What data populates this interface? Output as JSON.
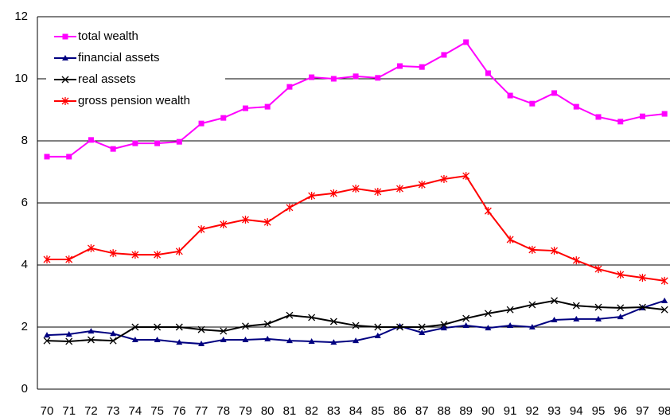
{
  "chart_data": {
    "type": "line",
    "categories": [
      "70",
      "71",
      "72",
      "73",
      "74",
      "75",
      "76",
      "77",
      "78",
      "79",
      "80",
      "81",
      "82",
      "83",
      "84",
      "85",
      "86",
      "87",
      "88",
      "89",
      "90",
      "91",
      "92",
      "93",
      "94",
      "95",
      "96",
      "97",
      "98"
    ],
    "series": [
      {
        "name": "total wealth",
        "color": "#ff00ff",
        "marker": "square",
        "values": [
          7.49,
          7.49,
          8.03,
          7.74,
          7.92,
          7.92,
          7.97,
          8.56,
          8.74,
          9.05,
          9.1,
          9.74,
          10.05,
          10.0,
          10.08,
          10.03,
          10.41,
          10.38,
          10.77,
          11.18,
          10.18,
          9.46,
          9.2,
          9.54,
          9.1,
          8.77,
          8.62,
          8.79,
          8.87
        ]
      },
      {
        "name": "financial assets",
        "color": "#000080",
        "marker": "triangle",
        "values": [
          1.74,
          1.77,
          1.87,
          1.79,
          1.59,
          1.59,
          1.51,
          1.46,
          1.59,
          1.59,
          1.62,
          1.56,
          1.54,
          1.51,
          1.56,
          1.72,
          2.03,
          1.82,
          1.97,
          2.05,
          1.97,
          2.05,
          2.0,
          2.23,
          2.26,
          2.26,
          2.33,
          2.62,
          2.85
        ]
      },
      {
        "name": "real assets",
        "color": "#000000",
        "marker": "x",
        "values": [
          1.56,
          1.54,
          1.59,
          1.56,
          2.0,
          2.0,
          2.0,
          1.92,
          1.87,
          2.03,
          2.1,
          2.38,
          2.31,
          2.18,
          2.05,
          2.0,
          2.0,
          2.0,
          2.08,
          2.28,
          2.44,
          2.56,
          2.72,
          2.85,
          2.69,
          2.64,
          2.62,
          2.64,
          2.56
        ]
      },
      {
        "name": "gross pension wealth",
        "color": "#ff0000",
        "marker": "asterisk",
        "values": [
          4.18,
          4.18,
          4.54,
          4.38,
          4.33,
          4.33,
          4.44,
          5.15,
          5.31,
          5.46,
          5.38,
          5.85,
          6.23,
          6.31,
          6.46,
          6.36,
          6.46,
          6.59,
          6.77,
          6.87,
          5.74,
          4.82,
          4.49,
          4.46,
          4.15,
          3.87,
          3.69,
          3.59,
          3.49
        ]
      }
    ],
    "ylim": [
      0,
      12
    ],
    "yticks": [
      0,
      2,
      4,
      6,
      8,
      10,
      12
    ],
    "grid": true,
    "legend": "upper left"
  }
}
